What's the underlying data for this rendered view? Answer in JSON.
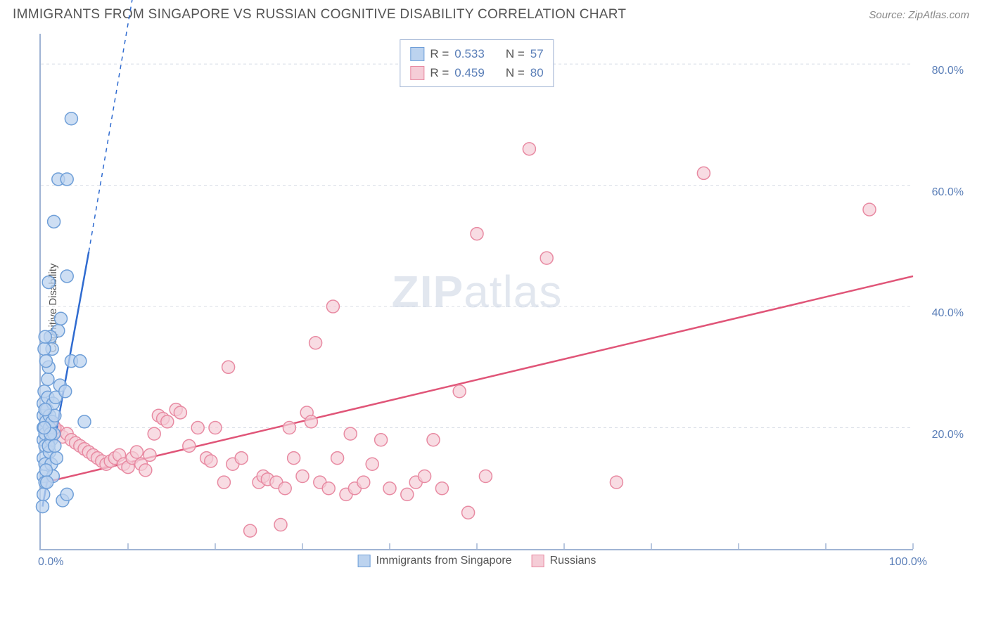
{
  "header": {
    "title": "IMMIGRANTS FROM SINGAPORE VS RUSSIAN COGNITIVE DISABILITY CORRELATION CHART",
    "source_prefix": "Source: ",
    "source_name": "ZipAtlas.com"
  },
  "axes": {
    "ylabel": "Cognitive Disability",
    "xmin": 0,
    "xmax": 100,
    "ymin": 0,
    "ymax": 85,
    "yticks": [
      20,
      40,
      60,
      80
    ],
    "ytick_labels": [
      "20.0%",
      "40.0%",
      "60.0%",
      "80.0%"
    ],
    "x_left_label": "0.0%",
    "x_right_label": "100.0%",
    "xticks_minor": [
      10,
      20,
      30,
      40,
      50,
      60,
      70,
      80,
      90,
      100
    ],
    "grid_color": "#d8dde6",
    "axis_color": "#a0b4d4",
    "tick_label_color": "#5b7fb8"
  },
  "watermark": {
    "part1": "ZIP",
    "part2": "atlas"
  },
  "legend_top": {
    "rows": [
      {
        "swatch_fill": "#bcd3ef",
        "swatch_stroke": "#6f9fd8",
        "r_label": "R =",
        "r_value": "0.533",
        "n_label": "N =",
        "n_value": "57"
      },
      {
        "swatch_fill": "#f5cdd7",
        "swatch_stroke": "#e88aa2",
        "r_label": "R =",
        "r_value": "0.459",
        "n_label": "N =",
        "n_value": "80"
      }
    ]
  },
  "legend_bottom": {
    "items": [
      {
        "swatch_fill": "#bcd3ef",
        "swatch_stroke": "#6f9fd8",
        "label": "Immigrants from Singapore"
      },
      {
        "swatch_fill": "#f5cdd7",
        "swatch_stroke": "#e88aa2",
        "label": "Russians"
      }
    ]
  },
  "series": {
    "blue": {
      "fill": "#bcd3ef",
      "stroke": "#6f9fd8",
      "marker_r": 9,
      "marker_opacity": 0.75,
      "trend": {
        "color": "#2f6bd0",
        "width": 2.5,
        "x1": 0.2,
        "y1": 7,
        "x2": 5.5,
        "y2": 49,
        "dash_to_x": 11,
        "dash_to_y": 95
      },
      "points": [
        [
          0.3,
          9
        ],
        [
          0.3,
          12
        ],
        [
          0.3,
          15
        ],
        [
          0.3,
          18
        ],
        [
          0.3,
          20
        ],
        [
          0.3,
          22
        ],
        [
          0.3,
          24
        ],
        [
          0.4,
          26
        ],
        [
          0.2,
          7
        ],
        [
          0.5,
          11
        ],
        [
          0.5,
          14
        ],
        [
          0.5,
          17
        ],
        [
          0.5,
          19
        ],
        [
          0.6,
          21
        ],
        [
          0.7,
          23
        ],
        [
          0.8,
          25
        ],
        [
          1.0,
          20
        ],
        [
          1.0,
          22
        ],
        [
          1.2,
          18
        ],
        [
          1.3,
          21
        ],
        [
          1.4,
          24
        ],
        [
          1.5,
          19
        ],
        [
          1.6,
          22
        ],
        [
          2.0,
          36
        ],
        [
          2.3,
          38
        ],
        [
          3.0,
          45
        ],
        [
          3.5,
          31
        ],
        [
          4.5,
          31
        ],
        [
          5.0,
          21
        ],
        [
          1.5,
          54
        ],
        [
          2.0,
          61
        ],
        [
          3.0,
          61
        ],
        [
          3.5,
          71
        ],
        [
          0.8,
          28
        ],
        [
          0.9,
          30
        ],
        [
          1.0,
          16
        ],
        [
          1.2,
          14
        ],
        [
          1.4,
          12
        ],
        [
          1.8,
          15
        ],
        [
          0.6,
          13
        ],
        [
          0.7,
          11
        ],
        [
          1.1,
          35
        ],
        [
          1.3,
          33
        ],
        [
          0.4,
          33
        ],
        [
          0.5,
          35
        ],
        [
          0.6,
          31
        ],
        [
          2.5,
          8
        ],
        [
          3.0,
          9
        ],
        [
          1.7,
          25
        ],
        [
          2.2,
          27
        ],
        [
          2.8,
          26
        ],
        [
          0.9,
          17
        ],
        [
          1.1,
          19
        ],
        [
          1.6,
          17
        ],
        [
          0.4,
          20
        ],
        [
          0.5,
          23
        ],
        [
          0.9,
          44
        ]
      ]
    },
    "pink": {
      "fill": "#f5cdd7",
      "stroke": "#e88aa2",
      "marker_r": 9,
      "marker_opacity": 0.7,
      "trend": {
        "color": "#e05578",
        "width": 2.5,
        "x1": 0.5,
        "y1": 11,
        "x2": 100,
        "y2": 45
      },
      "points": [
        [
          1.5,
          19
        ],
        [
          2,
          19.5
        ],
        [
          2.5,
          18.5
        ],
        [
          3,
          19
        ],
        [
          3.5,
          18
        ],
        [
          4,
          17.5
        ],
        [
          4.5,
          17
        ],
        [
          5,
          16.5
        ],
        [
          5.5,
          16
        ],
        [
          6,
          15.5
        ],
        [
          6.5,
          15
        ],
        [
          7,
          14.5
        ],
        [
          7.5,
          14
        ],
        [
          8,
          14.5
        ],
        [
          8.5,
          15
        ],
        [
          9,
          15.5
        ],
        [
          9.5,
          14
        ],
        [
          10,
          13.5
        ],
        [
          10.5,
          15
        ],
        [
          11,
          16
        ],
        [
          11.5,
          14
        ],
        [
          12,
          13
        ],
        [
          12.5,
          15.5
        ],
        [
          13,
          19
        ],
        [
          13.5,
          22
        ],
        [
          14,
          21.5
        ],
        [
          14.5,
          21
        ],
        [
          15.5,
          23
        ],
        [
          16,
          22.5
        ],
        [
          17,
          17
        ],
        [
          18,
          20
        ],
        [
          19,
          15
        ],
        [
          19.5,
          14.5
        ],
        [
          20,
          20
        ],
        [
          21,
          11
        ],
        [
          21.5,
          30
        ],
        [
          22,
          14
        ],
        [
          23,
          15
        ],
        [
          24,
          3
        ],
        [
          25,
          11
        ],
        [
          25.5,
          12
        ],
        [
          26,
          11.5
        ],
        [
          27,
          11
        ],
        [
          27.5,
          4
        ],
        [
          28,
          10
        ],
        [
          28.5,
          20
        ],
        [
          29,
          15
        ],
        [
          30,
          12
        ],
        [
          30.5,
          22.5
        ],
        [
          31,
          21
        ],
        [
          31.5,
          34
        ],
        [
          32,
          11
        ],
        [
          33,
          10
        ],
        [
          33.5,
          40
        ],
        [
          34,
          15
        ],
        [
          35,
          9
        ],
        [
          35.5,
          19
        ],
        [
          36,
          10
        ],
        [
          37,
          11
        ],
        [
          38,
          14
        ],
        [
          39,
          18
        ],
        [
          40,
          10
        ],
        [
          42,
          9
        ],
        [
          43,
          11
        ],
        [
          44,
          12
        ],
        [
          45,
          18
        ],
        [
          46,
          10
        ],
        [
          48,
          26
        ],
        [
          49,
          6
        ],
        [
          50,
          52
        ],
        [
          51,
          12
        ],
        [
          56,
          66
        ],
        [
          58,
          48
        ],
        [
          66,
          11
        ],
        [
          76,
          62
        ],
        [
          95,
          56
        ],
        [
          1,
          20
        ],
        [
          1.2,
          21
        ],
        [
          1.4,
          20.5
        ],
        [
          1.6,
          20
        ]
      ]
    }
  }
}
